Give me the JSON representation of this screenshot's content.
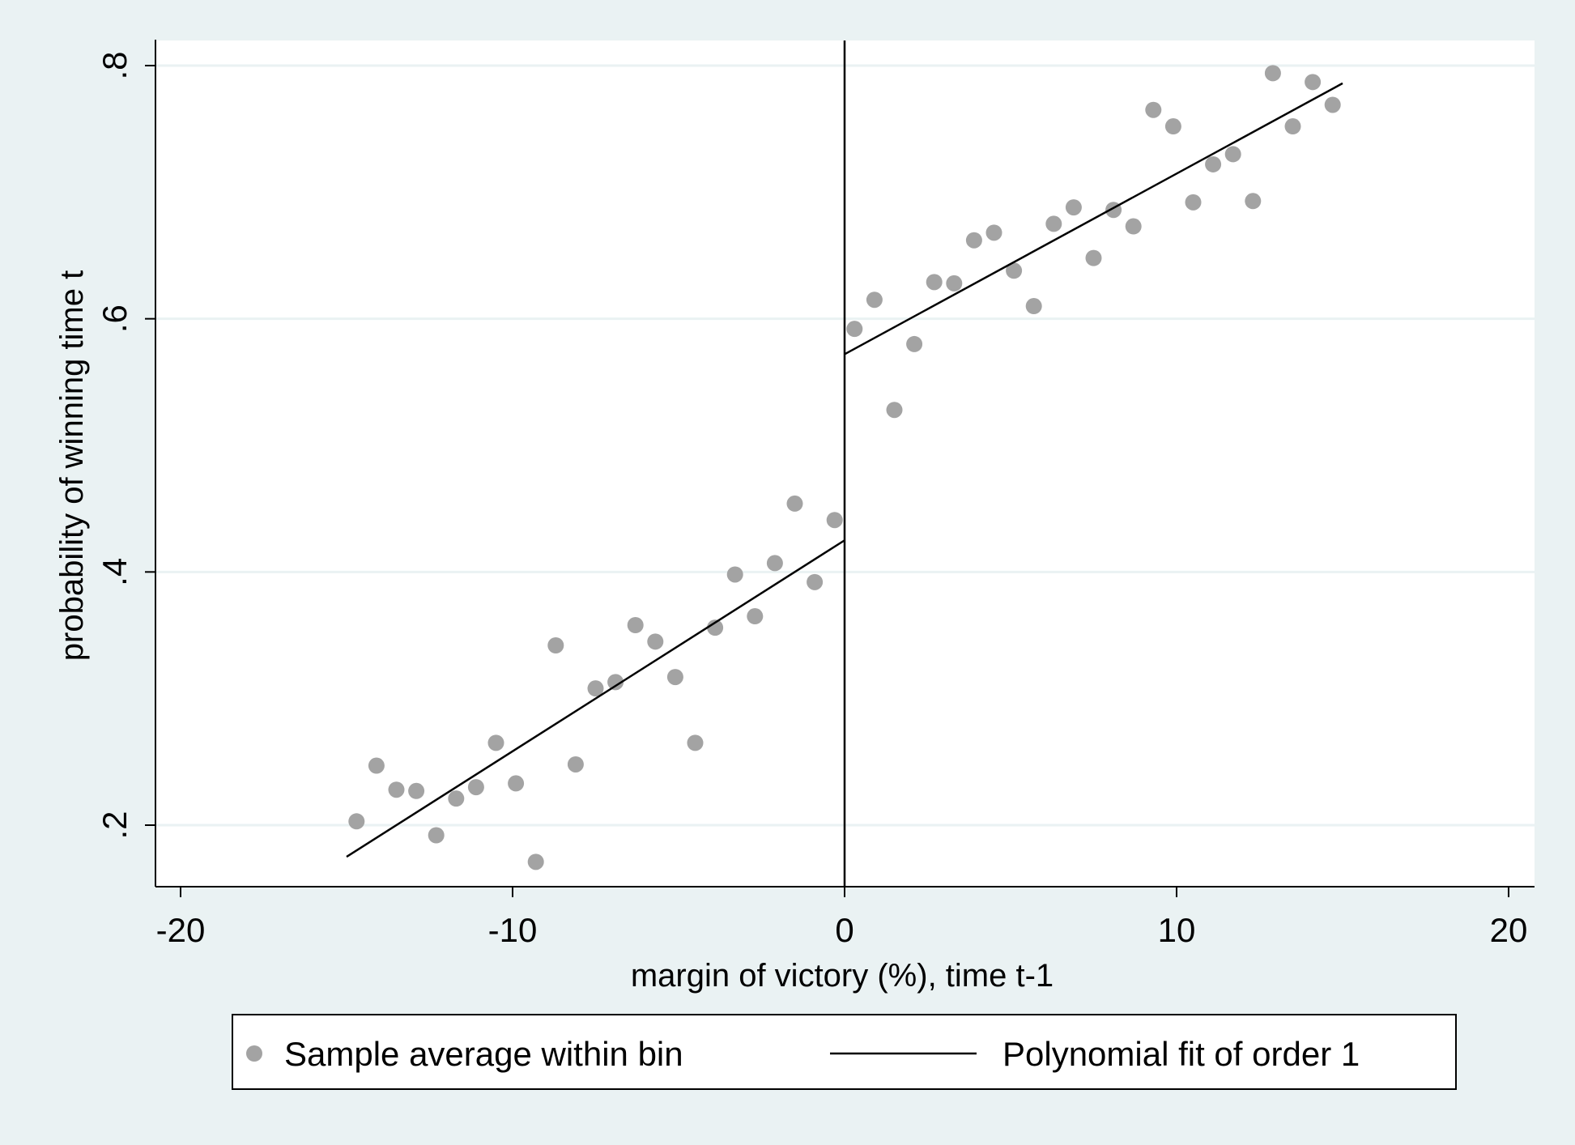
{
  "chart_data": {
    "type": "scatter",
    "xlabel": "margin of victory (%), time t-1",
    "ylabel": "probability of winning time t",
    "xlim": [
      -20.7,
      20.7
    ],
    "ylim": [
      0.152,
      0.822
    ],
    "x_ticks": [
      -20,
      -10,
      0,
      10,
      20
    ],
    "x_tick_labels": [
      "-20",
      "-10",
      "0",
      "10",
      "20"
    ],
    "y_ticks": [
      0.2,
      0.4,
      0.6,
      0.8
    ],
    "y_tick_labels": [
      ".2",
      ".4",
      ".6",
      ".8"
    ],
    "grid": "horizontal",
    "cutoff_line_x": 0,
    "legend_position": "bottom",
    "legend": {
      "scatter_label": "Sample average within bin",
      "line_label": "Polynomial fit of order 1"
    },
    "colors": {
      "background": "#eaf2f3",
      "plot_background": "#ffffff",
      "gridline": "#eaf2f3",
      "points": "#a3a3a3",
      "fit_line": "#000000"
    },
    "series": [
      {
        "kind": "points",
        "x": [
          -14.7,
          -14.1,
          -13.5,
          -12.9,
          -12.3,
          -11.7,
          -11.1,
          -10.5,
          -9.9,
          -9.3,
          -8.7,
          -8.1,
          -7.5,
          -6.9,
          -6.3,
          -5.7,
          -5.1,
          -4.5,
          -3.9,
          -3.3,
          -2.7,
          -2.1,
          -1.5,
          -0.9,
          -0.3,
          0.3,
          0.9,
          1.5,
          2.1,
          2.7,
          3.3,
          3.9,
          4.5,
          5.1,
          5.7,
          6.3,
          6.9,
          7.5,
          8.1,
          8.7,
          9.3,
          9.9,
          10.5,
          11.1,
          11.7,
          12.3,
          12.9,
          13.5,
          14.1,
          14.7
        ],
        "y": [
          0.203,
          0.247,
          0.228,
          0.227,
          0.192,
          0.221,
          0.23,
          0.265,
          0.233,
          0.171,
          0.342,
          0.248,
          0.308,
          0.313,
          0.358,
          0.345,
          0.317,
          0.265,
          0.356,
          0.398,
          0.365,
          0.407,
          0.454,
          0.392,
          0.441,
          0.592,
          0.615,
          0.528,
          0.58,
          0.629,
          0.628,
          0.662,
          0.668,
          0.638,
          0.61,
          0.675,
          0.688,
          0.648,
          0.686,
          0.673,
          0.765,
          0.752,
          0.692,
          0.722,
          0.73,
          0.693,
          0.794,
          0.752,
          0.787,
          0.769
        ]
      },
      {
        "kind": "fit_left",
        "x": [
          -15,
          0
        ],
        "y": [
          0.175,
          0.425
        ]
      },
      {
        "kind": "fit_right",
        "x": [
          0,
          15
        ],
        "y": [
          0.572,
          0.786
        ]
      }
    ]
  }
}
